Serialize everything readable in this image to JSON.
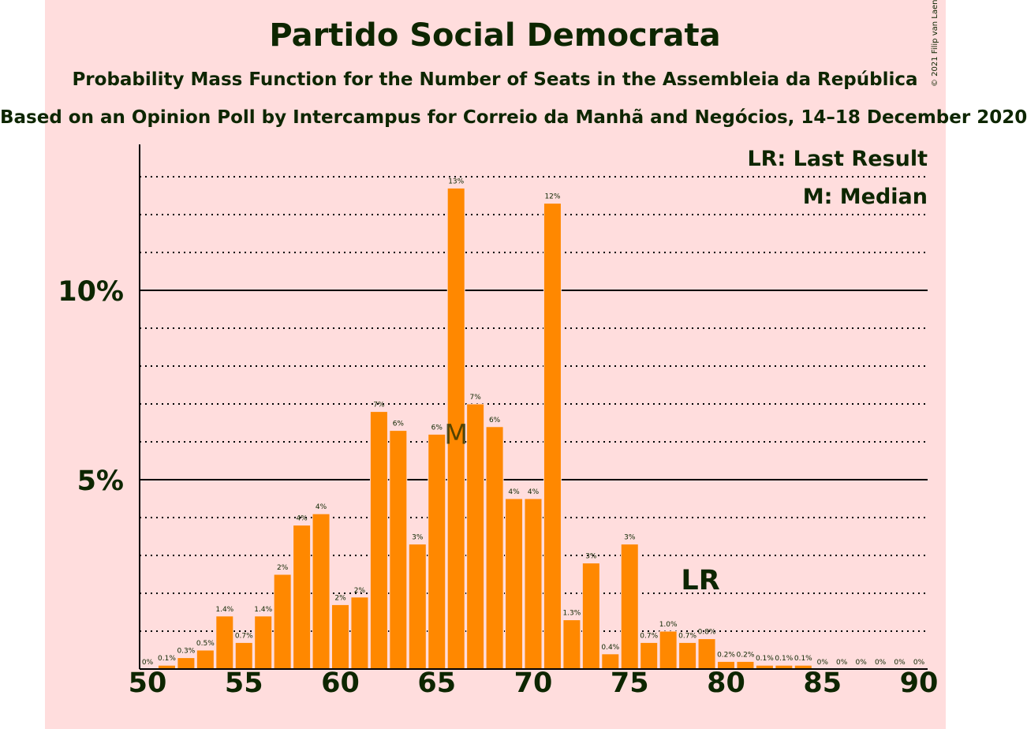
{
  "chart_data": {
    "type": "bar",
    "title": "Partido Social Democrata",
    "subtitle": "Probability Mass Function for the Number of Seats in the Assembleia da República",
    "subtitle2": "Based on an Opinion Poll by Intercampus for Correio da Manhã and Negócios, 14–18 December 2020",
    "copyright": "© 2021 Filip van Laenen",
    "legend": {
      "lr": "LR: Last Result",
      "median": "M: Median",
      "position": "top-right"
    },
    "x": [
      50,
      51,
      52,
      53,
      54,
      55,
      56,
      57,
      58,
      59,
      60,
      61,
      62,
      63,
      64,
      65,
      66,
      67,
      68,
      69,
      70,
      71,
      72,
      73,
      74,
      75,
      76,
      77,
      78,
      79,
      80,
      81,
      82,
      83,
      84,
      85,
      86,
      87,
      88,
      89,
      90
    ],
    "values": [
      0,
      0.1,
      0.3,
      0.5,
      1.4,
      0.7,
      1.4,
      2.5,
      3.8,
      4.1,
      1.7,
      1.9,
      6.8,
      6.3,
      3.3,
      6.2,
      12.7,
      7.0,
      6.4,
      4.5,
      4.5,
      12.3,
      1.3,
      2.8,
      0.4,
      3.3,
      0.7,
      1.0,
      0.7,
      0.8,
      0.2,
      0.2,
      0.1,
      0.1,
      0.1,
      0,
      0,
      0,
      0,
      0,
      0
    ],
    "value_labels": [
      "0%",
      "0.1%",
      "0.3%",
      "0.5%",
      "1.4%",
      "0.7%",
      "1.4%",
      "2%",
      "4%",
      "4%",
      "2%",
      "2%",
      "7%",
      "6%",
      "3%",
      "6%",
      "13%",
      "7%",
      "6%",
      "4%",
      "4%",
      "12%",
      "1.3%",
      "3%",
      "0.4%",
      "3%",
      "0.7%",
      "1.0%",
      "0.7%",
      "0.8%",
      "0.2%",
      "0.2%",
      "0.1%",
      "0.1%",
      "0.1%",
      "0%",
      "0%",
      "0%",
      "0%",
      "0%",
      "0%"
    ],
    "x_ticks": [
      50,
      55,
      60,
      65,
      70,
      75,
      80,
      85,
      90
    ],
    "y_ticks": [
      {
        "value": 5,
        "label": "5%"
      },
      {
        "value": 10,
        "label": "10%"
      }
    ],
    "ylim": [
      0,
      13.9
    ],
    "median_seat": 66,
    "median_label": "M",
    "last_result_seat": 79,
    "last_result_label": "LR",
    "grid": "dotted every 1%, solid at 5% and 10%",
    "bar_color": "#ff8800",
    "background_color": "#ffdddd",
    "text_color": "#0d2600"
  }
}
